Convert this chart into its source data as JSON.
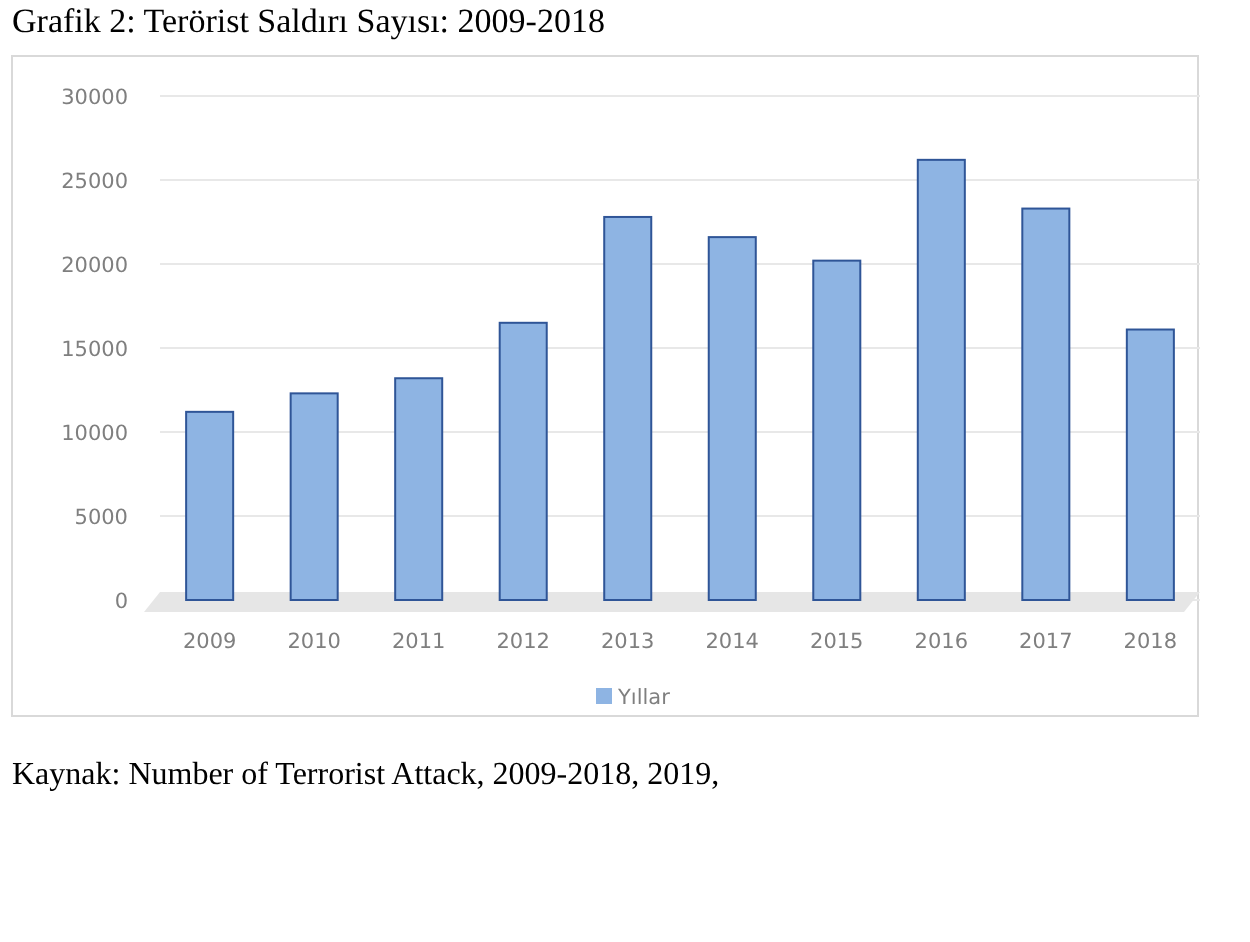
{
  "chart_data": {
    "type": "bar",
    "title": "Grafik 2: Terörist Saldırı Sayısı: 2009-2018",
    "categories": [
      "2009",
      "2010",
      "2011",
      "2012",
      "2013",
      "2014",
      "2015",
      "2016",
      "2017",
      "2018"
    ],
    "series": [
      {
        "name": "Yıllar",
        "color": "#8eb4e3",
        "values": [
          11200,
          12300,
          13200,
          16500,
          22800,
          21600,
          20200,
          26200,
          23300,
          16100
        ]
      }
    ],
    "ylim": [
      0,
      30000
    ],
    "yticks": [
      0,
      5000,
      10000,
      15000,
      20000,
      25000,
      30000
    ],
    "grid": "y",
    "legend": "bottom",
    "annotations": [
      "Kaynak: Number of Terrorist Attack, 2009-2018, 2019,"
    ]
  }
}
